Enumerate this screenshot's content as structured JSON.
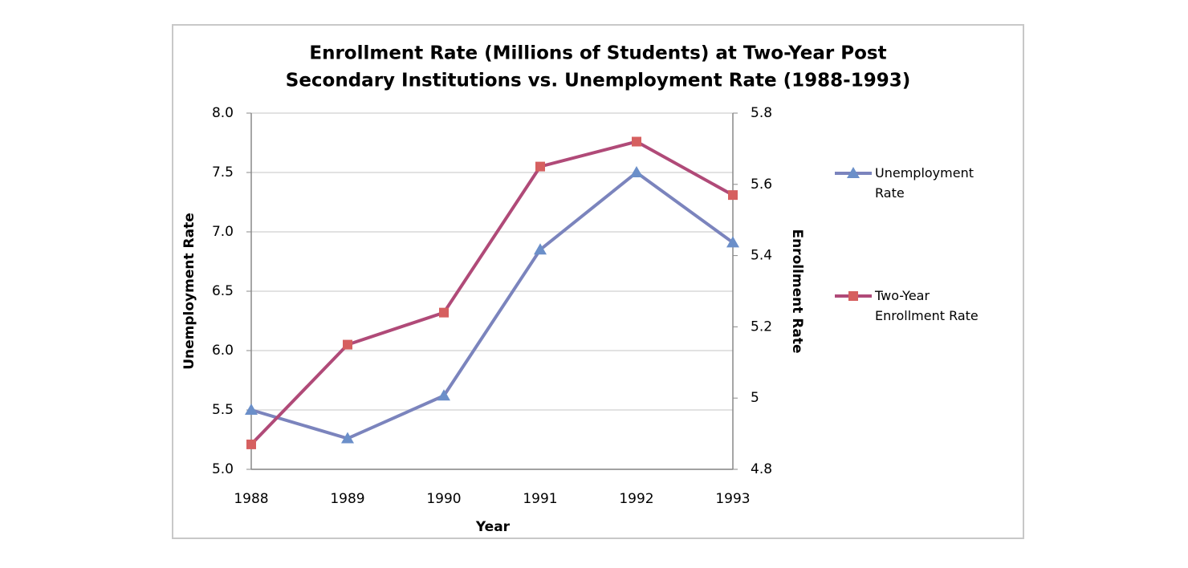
{
  "chart_data": {
    "type": "line",
    "title": "Enrollment Rate (Millions of Students) at Two-Year Post Secondary Institutions vs. Unemployment Rate (1988-1993)",
    "title_lines": [
      "Enrollment Rate (Millions of Students) at Two-Year Post",
      "Secondary Institutions vs. Unemployment Rate (1988-1993)"
    ],
    "x_label": "Year",
    "y_label": "Unemployment Rate",
    "y2_label": "Enrollment Rate",
    "categories": [
      "1988",
      "1989",
      "1990",
      "1991",
      "1992",
      "1993"
    ],
    "series": [
      {
        "name": "Unemployment Rate",
        "color": "#7b84bd",
        "marker_color": "#6b8fc9",
        "marker": "triangle",
        "values": [
          5.5,
          5.26,
          5.62,
          6.85,
          7.5,
          6.91
        ]
      },
      {
        "name": "Two-Year Enrollment Rate",
        "color": "#b04a78",
        "marker_color": "#d66060",
        "marker": "square",
        "axis": "y2",
        "values": [
          4.87,
          5.15,
          5.24,
          5.65,
          5.72,
          5.57
        ]
      }
    ],
    "ylim": [
      5,
      8
    ],
    "yticks": [
      {
        "value": 5,
        "label": "5.0"
      },
      {
        "value": 5.5,
        "label": "5.5"
      },
      {
        "value": 6,
        "label": "6.0"
      },
      {
        "value": 6.5,
        "label": "6.5"
      },
      {
        "value": 7,
        "label": "7.0"
      },
      {
        "value": 7.5,
        "label": "7.5"
      },
      {
        "value": 8,
        "label": "8.0"
      }
    ],
    "y2lim": [
      4.8,
      5.8
    ],
    "y2ticks": [
      4.8,
      5,
      5.2,
      5.4,
      5.6,
      5.8
    ],
    "y2ticks_fix": null,
    "grid": true,
    "legend": "right"
  }
}
